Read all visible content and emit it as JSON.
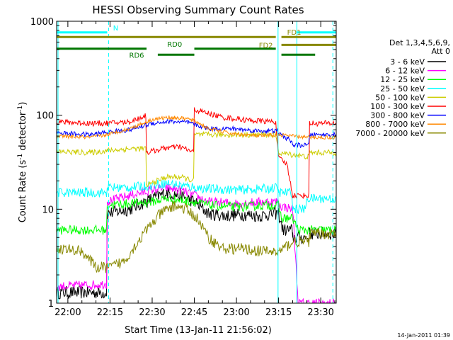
{
  "chart_data": {
    "type": "line",
    "title": "HESSI Observing Summary Count Rates",
    "xlabel": "Start Time (13-Jan-11 21:56:02)",
    "ylabel": "Count Rate (s",
    "ylabel_sup": "-1",
    "ylabel_mid": " detector",
    "ylabel_sup2": "-1",
    "ylabel_end": ")",
    "yscale": "log",
    "ylim": [
      1,
      1000
    ],
    "xlim": [
      -4.0,
      95.5
    ],
    "x_units": "minutes after 22:00",
    "x_ticks": [
      {
        "label": "22:00",
        "value": 0
      },
      {
        "label": "22:15",
        "value": 15
      },
      {
        "label": "22:30",
        "value": 30
      },
      {
        "label": "22:45",
        "value": 45
      },
      {
        "label": "23:00",
        "value": 60
      },
      {
        "label": "23:15",
        "value": 75
      },
      {
        "label": "23:30",
        "value": 90
      }
    ],
    "y_ticks": [
      {
        "label": "1",
        "value": 1
      },
      {
        "label": "10",
        "value": 10
      },
      {
        "label": "100",
        "value": 100
      },
      {
        "label": "1000",
        "value": 1000
      }
    ],
    "legend": {
      "placement": "right",
      "header": [
        "Det 1,3,4,5,6,9,",
        "Att 0"
      ],
      "entries": [
        {
          "label": "3 - 6 keV",
          "color": "#000000"
        },
        {
          "label": "6 - 12 keV",
          "color": "#ff00ff"
        },
        {
          "label": "12 - 25 keV",
          "color": "#00ff00"
        },
        {
          "label": "25 - 50 keV",
          "color": "#00ffff"
        },
        {
          "label": "50 - 100 keV",
          "color": "#cccc00"
        },
        {
          "label": "100 - 300 keV",
          "color": "#ff0000"
        },
        {
          "label": "300 - 800 keV",
          "color": "#0000ff"
        },
        {
          "label": "800 - 7000 keV",
          "color": "#ff8800"
        },
        {
          "label": "7000 - 20000 keV",
          "color": "#888800"
        }
      ]
    },
    "series": [
      {
        "name": "3 - 6 keV",
        "color": "#000000",
        "points": [
          [
            -4,
            1.3
          ],
          [
            14,
            1.3
          ],
          [
            14,
            9
          ],
          [
            22,
            10
          ],
          [
            30,
            13
          ],
          [
            35,
            15
          ],
          [
            40,
            14
          ],
          [
            45,
            12
          ],
          [
            50,
            9
          ],
          [
            56,
            8.5
          ],
          [
            62,
            8.8
          ],
          [
            68,
            8.5
          ],
          [
            74,
            9
          ],
          [
            75,
            9
          ],
          [
            76.5,
            6
          ],
          [
            80,
            6
          ],
          [
            80,
            5
          ],
          [
            86,
            5
          ],
          [
            86,
            5.5
          ],
          [
            95.5,
            5.5
          ]
        ],
        "noise": 0.07
      },
      {
        "name": "6 - 12 keV",
        "color": "#ff00ff",
        "points": [
          [
            -4,
            1.5
          ],
          [
            14,
            1.6
          ],
          [
            14,
            12
          ],
          [
            22,
            14
          ],
          [
            30,
            16
          ],
          [
            35,
            17
          ],
          [
            40,
            16
          ],
          [
            45,
            14
          ],
          [
            50,
            12
          ],
          [
            60,
            11.5
          ],
          [
            70,
            12
          ],
          [
            75,
            12
          ],
          [
            75,
            11
          ],
          [
            80,
            10
          ],
          [
            82,
            1
          ],
          [
            86,
            1
          ],
          [
            88,
            1
          ],
          [
            95.5,
            1
          ]
        ],
        "noise": 0.05
      },
      {
        "name": "12 - 25 keV",
        "color": "#00ff00",
        "points": [
          [
            -4,
            6
          ],
          [
            14,
            6
          ],
          [
            14,
            11
          ],
          [
            22,
            11.5
          ],
          [
            30,
            12
          ],
          [
            35,
            13
          ],
          [
            40,
            12.5
          ],
          [
            45,
            12
          ],
          [
            50,
            11
          ],
          [
            60,
            10.5
          ],
          [
            70,
            11
          ],
          [
            75,
            11
          ],
          [
            76,
            8
          ],
          [
            80,
            8
          ],
          [
            82,
            6
          ],
          [
            95.5,
            6
          ]
        ],
        "noise": 0.05
      },
      {
        "name": "25 - 50 keV",
        "color": "#00ffff",
        "points": [
          [
            -4,
            15
          ],
          [
            14,
            15
          ],
          [
            14,
            17
          ],
          [
            22,
            17
          ],
          [
            30,
            18
          ],
          [
            35,
            19
          ],
          [
            40,
            18
          ],
          [
            45,
            17
          ],
          [
            50,
            16.5
          ],
          [
            60,
            16
          ],
          [
            70,
            16.5
          ],
          [
            75,
            17
          ],
          [
            75,
            15
          ],
          [
            80,
            15
          ],
          [
            80,
            10
          ],
          [
            85,
            10
          ],
          [
            85,
            13
          ],
          [
            95.5,
            13
          ]
        ],
        "noise": 0.05
      },
      {
        "name": "50 - 100 keV",
        "color": "#cccc00",
        "points": [
          [
            -4,
            41
          ],
          [
            8,
            40
          ],
          [
            14,
            42
          ],
          [
            22,
            44
          ],
          [
            28,
            44
          ],
          [
            28,
            18
          ],
          [
            35,
            22
          ],
          [
            40,
            22
          ],
          [
            45,
            20
          ],
          [
            45,
            62
          ],
          [
            55,
            62
          ],
          [
            65,
            62
          ],
          [
            74,
            62
          ],
          [
            75,
            40
          ],
          [
            80,
            38
          ],
          [
            86,
            36
          ],
          [
            86,
            40
          ],
          [
            95.5,
            40
          ]
        ],
        "noise": 0.03
      },
      {
        "name": "100 - 300 keV",
        "color": "#ff0000",
        "points": [
          [
            -4,
            85
          ],
          [
            8,
            82
          ],
          [
            14,
            82
          ],
          [
            22,
            85
          ],
          [
            28,
            100
          ],
          [
            28,
            40
          ],
          [
            35,
            45
          ],
          [
            40,
            46
          ],
          [
            45,
            40
          ],
          [
            45,
            115
          ],
          [
            55,
            95
          ],
          [
            65,
            88
          ],
          [
            74,
            85
          ],
          [
            75,
            35
          ],
          [
            78,
            30
          ],
          [
            80,
            14
          ],
          [
            86,
            14
          ],
          [
            86,
            82
          ],
          [
            95.5,
            82
          ]
        ],
        "noise": 0.03
      },
      {
        "name": "300 - 800 keV",
        "color": "#0000ff",
        "points": [
          [
            -4,
            65
          ],
          [
            8,
            62
          ],
          [
            14,
            66
          ],
          [
            22,
            70
          ],
          [
            30,
            82
          ],
          [
            36,
            86
          ],
          [
            42,
            84
          ],
          [
            45,
            80
          ],
          [
            50,
            72
          ],
          [
            58,
            72
          ],
          [
            68,
            68
          ],
          [
            75,
            68
          ],
          [
            75,
            64
          ],
          [
            80,
            52
          ],
          [
            80,
            48
          ],
          [
            86,
            48
          ],
          [
            86,
            62
          ],
          [
            95.5,
            62
          ]
        ],
        "noise": 0.025
      },
      {
        "name": "800 - 7000 keV",
        "color": "#ff8800",
        "points": [
          [
            -4,
            60
          ],
          [
            8,
            58
          ],
          [
            14,
            62
          ],
          [
            22,
            72
          ],
          [
            30,
            90
          ],
          [
            36,
            95
          ],
          [
            42,
            92
          ],
          [
            45,
            88
          ],
          [
            50,
            72
          ],
          [
            58,
            64
          ],
          [
            68,
            60
          ],
          [
            75,
            62
          ],
          [
            80,
            60
          ],
          [
            86,
            58
          ],
          [
            95.5,
            58
          ]
        ],
        "noise": 0.02
      },
      {
        "name": "7000 - 20000 keV",
        "color": "#888800",
        "points": [
          [
            -4,
            3.8
          ],
          [
            5,
            3.6
          ],
          [
            10,
            2.4
          ],
          [
            15,
            2.4
          ],
          [
            20,
            2.8
          ],
          [
            28,
            6
          ],
          [
            33,
            9
          ],
          [
            38,
            11
          ],
          [
            42,
            10
          ],
          [
            46,
            8
          ],
          [
            50,
            5
          ],
          [
            55,
            3.8
          ],
          [
            62,
            3.8
          ],
          [
            68,
            3.6
          ],
          [
            75,
            3.5
          ],
          [
            80,
            4.5
          ],
          [
            86,
            4.5
          ],
          [
            86,
            5.5
          ],
          [
            95.5,
            5.5
          ]
        ],
        "noise": 0.06
      }
    ],
    "state_bars": [
      {
        "label": "N",
        "color": "#00ffff",
        "value": 760,
        "segments": [
          [
            -4,
            14
          ],
          [
            81.5,
            95.5
          ]
        ]
      },
      {
        "label": "FD1",
        "color": "#888800",
        "value": 680,
        "segments": [
          [
            -4,
            74
          ],
          [
            76,
            95.5
          ]
        ]
      },
      {
        "label": "FD2",
        "color": "#888800",
        "value": 560,
        "segments": [
          [
            76,
            95.5
          ]
        ]
      },
      {
        "label": "RD0",
        "color": "#007700",
        "value": 510,
        "segments": [
          [
            -4,
            28
          ],
          [
            45,
            74
          ]
        ]
      },
      {
        "label": "RD6",
        "color": "#007700",
        "value": 440,
        "segments": [
          [
            32,
            45
          ],
          [
            76,
            88
          ]
        ]
      }
    ],
    "vlines": [
      {
        "color": "#00ffff",
        "style": "dashed",
        "value": 14.5
      },
      {
        "color": "#00ffff",
        "style": "solid",
        "value": 74.8
      },
      {
        "color": "#00ffff",
        "style": "solid",
        "value": 81.5
      },
      {
        "color": "#00ffff",
        "style": "dashed",
        "value": 94.3
      },
      {
        "color": "#00ffff",
        "style": "solid",
        "value": -3.5
      }
    ],
    "timestamp": "14-Jan-2011 01:39"
  }
}
